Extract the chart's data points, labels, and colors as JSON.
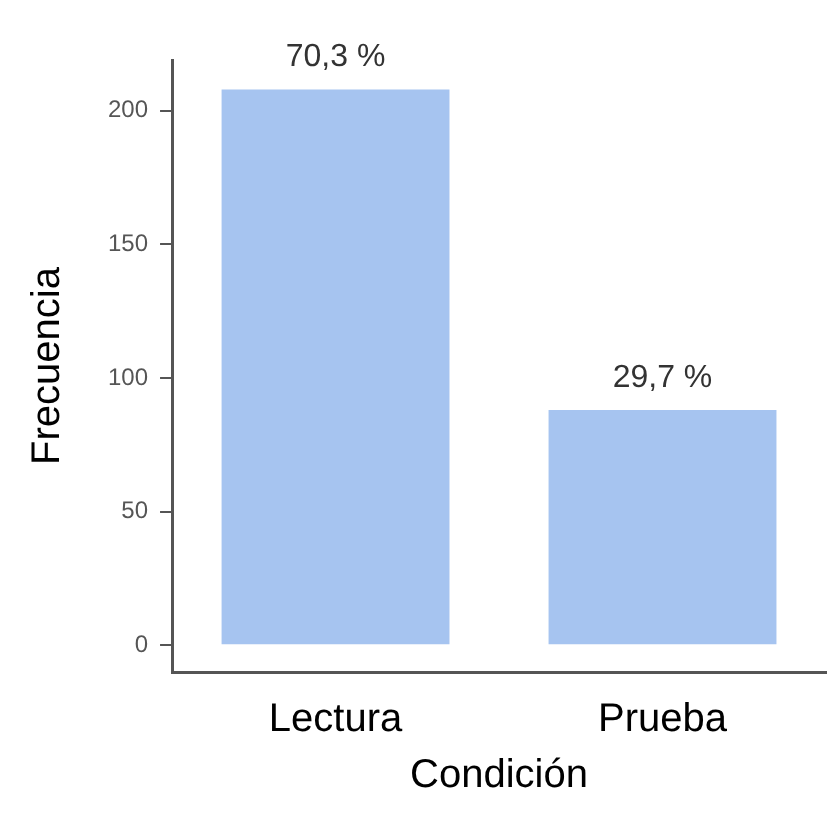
{
  "chart_data": {
    "type": "bar",
    "xlabel": "Condición",
    "ylabel": "Frecuencia",
    "categories": [
      "Lectura",
      "Prueba"
    ],
    "values": [
      208,
      88
    ],
    "color": "#a6c4f0",
    "annotations": [
      {
        "text": "70,3 %",
        "x": "Lectura",
        "y": 208
      },
      {
        "text": "29,7 %",
        "x": "Prueba",
        "y": 88
      }
    ],
    "ylim": [
      -10,
      219
    ],
    "yticks": [
      0,
      50,
      100,
      150,
      200
    ],
    "grid": false,
    "legend": false
  }
}
